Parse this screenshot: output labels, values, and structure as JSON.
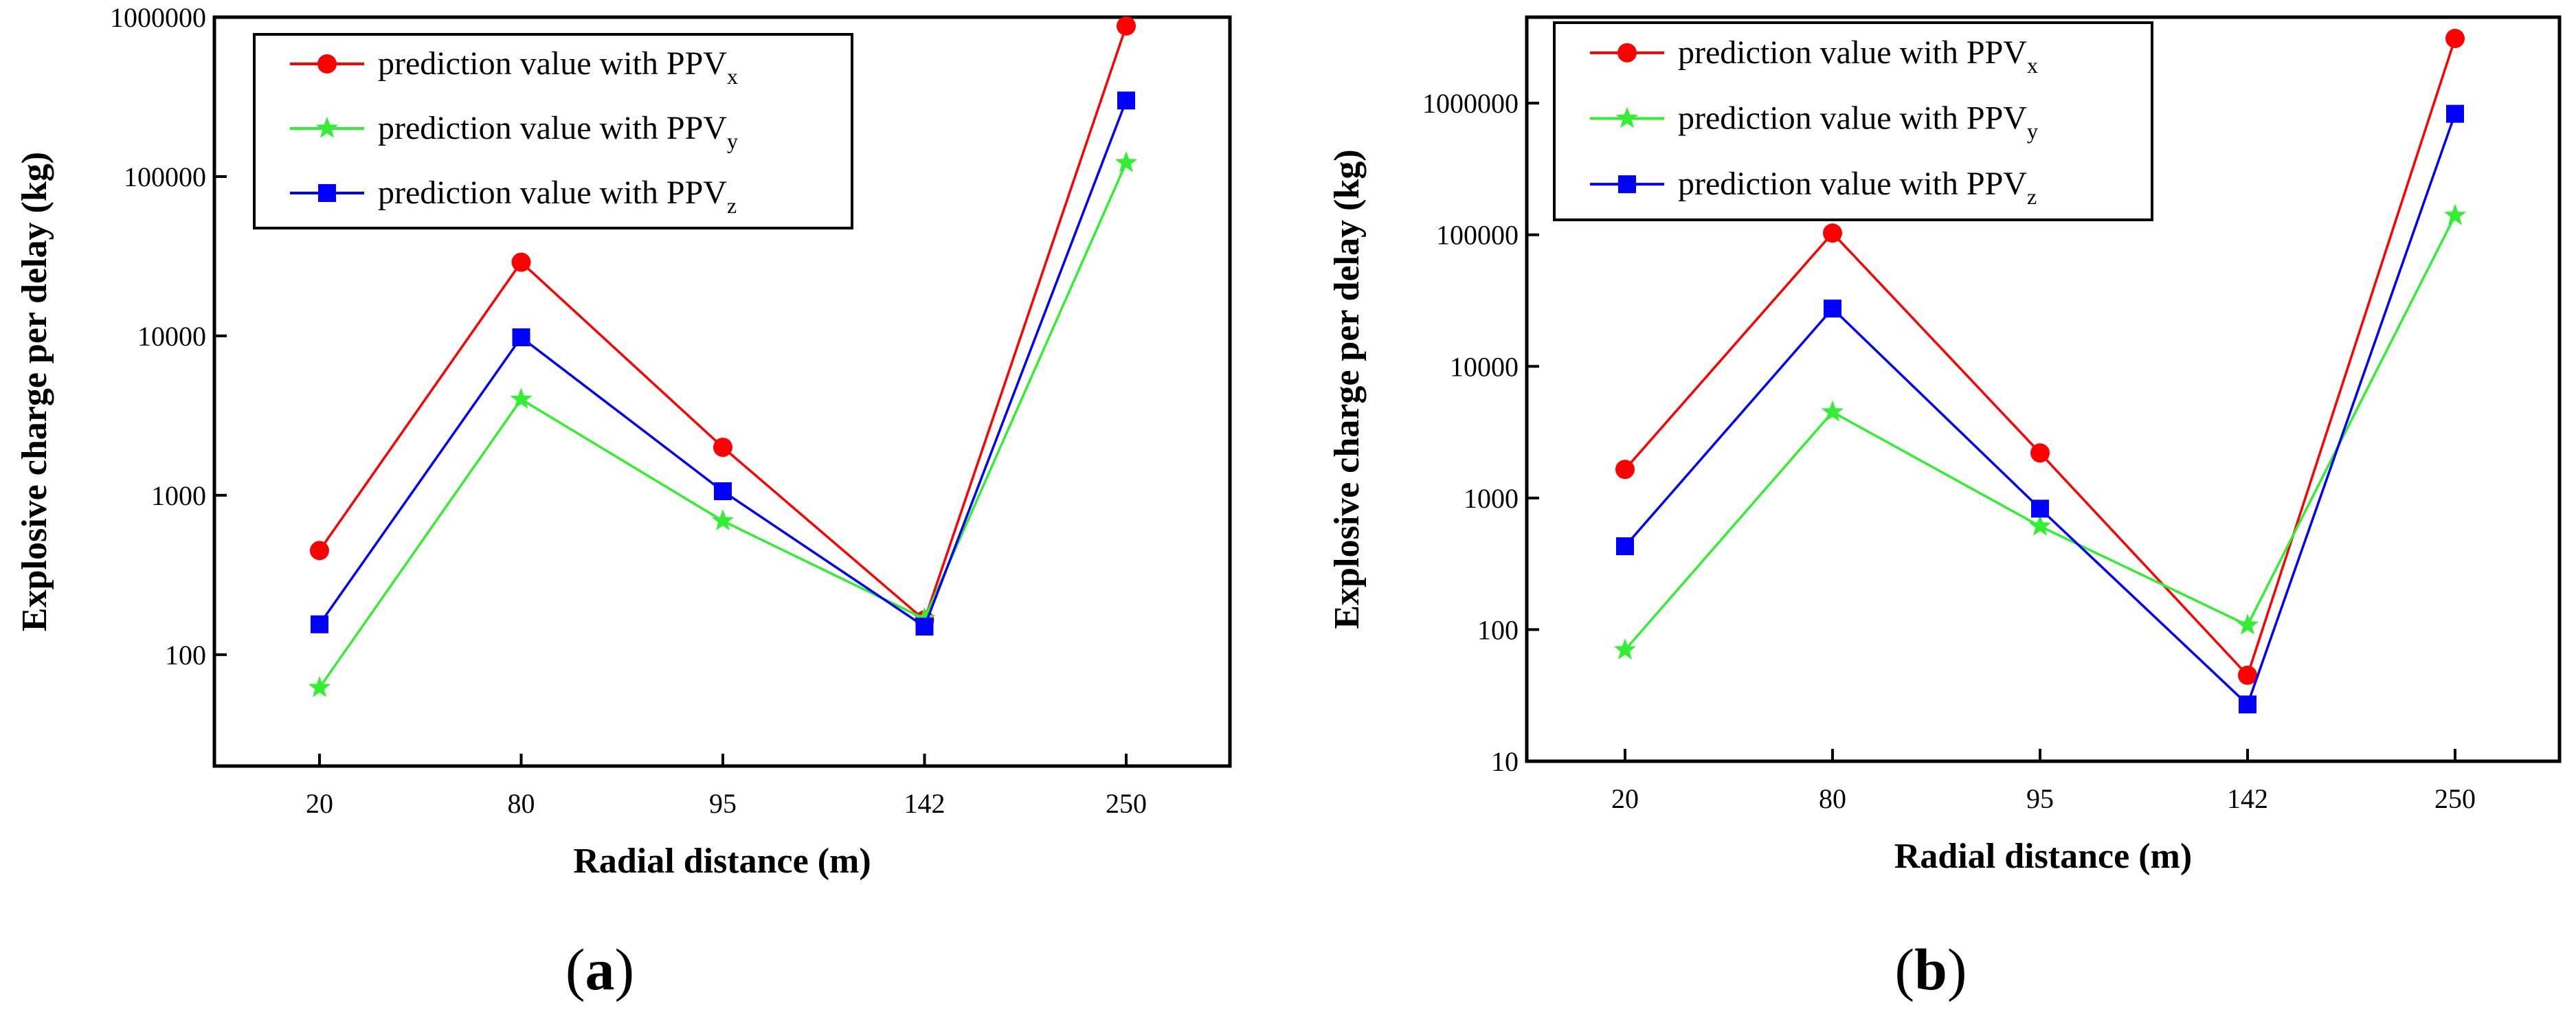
{
  "figure": {
    "panels": [
      {
        "label_open": "(",
        "label_letter": "a",
        "label_close": ")"
      },
      {
        "label_open": "(",
        "label_letter": "b",
        "label_close": ")"
      }
    ]
  },
  "chart_data": [
    {
      "type": "line",
      "panel": "a",
      "title": "",
      "xlabel": "Radial distance (m)",
      "ylabel": "Explosive charge per delay (kg)",
      "yscale": "log",
      "ylim": [
        20,
        1000000
      ],
      "yticks": [
        100,
        1000,
        10000,
        100000,
        1000000
      ],
      "ytick_labels": [
        "100",
        "1000",
        "10000",
        "100000",
        "1000000"
      ],
      "categories": [
        "20",
        "80",
        "95",
        "142",
        "250"
      ],
      "legend_position": "top-left",
      "series": [
        {
          "name": "prediction value with PPV",
          "subscript": "x",
          "color": "#ff0000",
          "marker": "circle",
          "values": [
            450,
            29000,
            2000,
            165,
            880000
          ]
        },
        {
          "name": "prediction value with PPV",
          "subscript": "y",
          "color": "#33ee33",
          "marker": "star",
          "values": [
            62,
            4000,
            690,
            168,
            122000
          ]
        },
        {
          "name": "prediction value with PPV",
          "subscript": "z",
          "color": "#0000ff",
          "marker": "square",
          "values": [
            155,
            9800,
            1060,
            150,
            300000
          ]
        }
      ]
    },
    {
      "type": "line",
      "panel": "b",
      "title": "",
      "xlabel": "Radial distance (m)",
      "ylabel": "Explosive charge per delay (kg)",
      "yscale": "log",
      "ylim": [
        10,
        4500000
      ],
      "yticks": [
        10,
        100,
        1000,
        10000,
        100000,
        1000000
      ],
      "ytick_labels": [
        "10",
        "100",
        "1000",
        "10000",
        "100000",
        "1000000"
      ],
      "categories": [
        "20",
        "80",
        "95",
        "142",
        "250"
      ],
      "legend_position": "top-left",
      "series": [
        {
          "name": "prediction value with PPV",
          "subscript": "x",
          "color": "#ff0000",
          "marker": "circle",
          "values": [
            1650,
            103000,
            2200,
            45,
            3100000
          ]
        },
        {
          "name": "prediction value with PPV",
          "subscript": "y",
          "color": "#33ee33",
          "marker": "star",
          "values": [
            70,
            4500,
            610,
            108,
            140000
          ]
        },
        {
          "name": "prediction value with PPV",
          "subscript": "z",
          "color": "#0000ff",
          "marker": "square",
          "values": [
            430,
            27500,
            830,
            27,
            830000
          ]
        }
      ]
    }
  ]
}
